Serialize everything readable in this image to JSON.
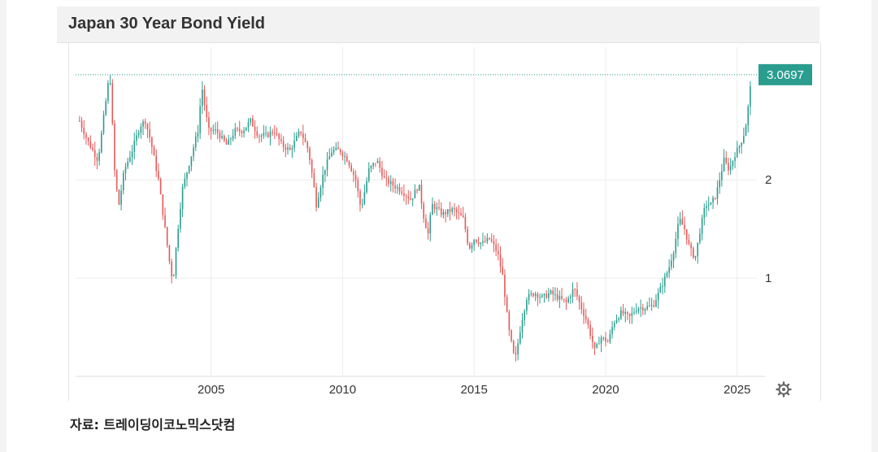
{
  "header": {
    "title": "Japan 30 Year Bond Yield"
  },
  "footer": {
    "source": "자료: 트레이딩이코노믹스닷컴"
  },
  "colors": {
    "up": "#2a9d8f",
    "down": "#e35a5a",
    "grid": "#ececec",
    "last_price_tag": "#2a9d8f"
  },
  "icons": {
    "settings": "gear-icon"
  },
  "chart_data": {
    "type": "candlestick",
    "title": "Japan 30 Year Bond Yield",
    "last_value_label": "3.0697",
    "last_value": 3.0697,
    "x_range": [
      1999.85,
      2025.75
    ],
    "y_range": [
      0.0,
      3.35
    ],
    "x_ticks": [
      {
        "value": 2005,
        "label": "2005"
      },
      {
        "value": 2010,
        "label": "2010"
      },
      {
        "value": 2015,
        "label": "2015"
      },
      {
        "value": 2020,
        "label": "2020"
      },
      {
        "value": 2025,
        "label": "2025"
      }
    ],
    "y_ticks": [
      {
        "value": 1,
        "label": "1"
      },
      {
        "value": 2,
        "label": "2"
      }
    ],
    "grid": true,
    "series": [
      {
        "points": [
          [
            2000.0,
            2.6
          ],
          [
            2000.3,
            2.4
          ],
          [
            2000.7,
            2.2
          ],
          [
            2001.0,
            2.8
          ],
          [
            2001.15,
            3.1
          ],
          [
            2001.35,
            2.0
          ],
          [
            2001.5,
            1.75
          ],
          [
            2001.7,
            2.1
          ],
          [
            2002.0,
            2.3
          ],
          [
            2002.3,
            2.55
          ],
          [
            2002.5,
            2.6
          ],
          [
            2002.7,
            2.4
          ],
          [
            2003.0,
            2.0
          ],
          [
            2003.2,
            1.6
          ],
          [
            2003.4,
            1.2
          ],
          [
            2003.55,
            0.95
          ],
          [
            2003.7,
            1.4
          ],
          [
            2003.9,
            1.9
          ],
          [
            2004.2,
            2.2
          ],
          [
            2004.5,
            2.5
          ],
          [
            2004.65,
            2.95
          ],
          [
            2004.9,
            2.5
          ],
          [
            2005.2,
            2.5
          ],
          [
            2005.6,
            2.35
          ],
          [
            2005.9,
            2.5
          ],
          [
            2006.2,
            2.5
          ],
          [
            2006.5,
            2.6
          ],
          [
            2006.8,
            2.45
          ],
          [
            2007.1,
            2.45
          ],
          [
            2007.4,
            2.5
          ],
          [
            2007.7,
            2.35
          ],
          [
            2008.0,
            2.3
          ],
          [
            2008.4,
            2.5
          ],
          [
            2008.7,
            2.3
          ],
          [
            2008.9,
            1.95
          ],
          [
            2009.0,
            1.75
          ],
          [
            2009.3,
            2.1
          ],
          [
            2009.6,
            2.3
          ],
          [
            2009.9,
            2.3
          ],
          [
            2010.2,
            2.2
          ],
          [
            2010.5,
            2.0
          ],
          [
            2010.7,
            1.7
          ],
          [
            2011.0,
            2.1
          ],
          [
            2011.3,
            2.2
          ],
          [
            2011.6,
            2.0
          ],
          [
            2011.9,
            1.95
          ],
          [
            2012.2,
            1.9
          ],
          [
            2012.6,
            1.8
          ],
          [
            2012.9,
            1.95
          ],
          [
            2013.1,
            1.6
          ],
          [
            2013.25,
            1.45
          ],
          [
            2013.4,
            1.75
          ],
          [
            2013.8,
            1.65
          ],
          [
            2014.2,
            1.7
          ],
          [
            2014.6,
            1.6
          ],
          [
            2014.8,
            1.3
          ],
          [
            2015.0,
            1.4
          ],
          [
            2015.3,
            1.35
          ],
          [
            2015.6,
            1.4
          ],
          [
            2015.9,
            1.25
          ],
          [
            2016.1,
            1.0
          ],
          [
            2016.3,
            0.5
          ],
          [
            2016.55,
            0.15
          ],
          [
            2016.8,
            0.55
          ],
          [
            2017.0,
            0.8
          ],
          [
            2017.3,
            0.85
          ],
          [
            2017.6,
            0.8
          ],
          [
            2017.9,
            0.85
          ],
          [
            2018.2,
            0.8
          ],
          [
            2018.5,
            0.75
          ],
          [
            2018.8,
            0.9
          ],
          [
            2019.0,
            0.75
          ],
          [
            2019.3,
            0.55
          ],
          [
            2019.6,
            0.25
          ],
          [
            2019.8,
            0.4
          ],
          [
            2020.1,
            0.35
          ],
          [
            2020.3,
            0.55
          ],
          [
            2020.6,
            0.65
          ],
          [
            2020.9,
            0.6
          ],
          [
            2021.2,
            0.7
          ],
          [
            2021.5,
            0.7
          ],
          [
            2021.8,
            0.72
          ],
          [
            2022.1,
            0.9
          ],
          [
            2022.4,
            1.1
          ],
          [
            2022.6,
            1.3
          ],
          [
            2022.8,
            1.6
          ],
          [
            2023.0,
            1.5
          ],
          [
            2023.2,
            1.3
          ],
          [
            2023.4,
            1.2
          ],
          [
            2023.6,
            1.5
          ],
          [
            2023.8,
            1.75
          ],
          [
            2024.0,
            1.75
          ],
          [
            2024.2,
            1.85
          ],
          [
            2024.5,
            2.2
          ],
          [
            2024.7,
            2.1
          ],
          [
            2024.9,
            2.25
          ],
          [
            2025.1,
            2.35
          ],
          [
            2025.3,
            2.5
          ],
          [
            2025.45,
            2.8
          ],
          [
            2025.55,
            3.0697
          ]
        ]
      }
    ]
  }
}
